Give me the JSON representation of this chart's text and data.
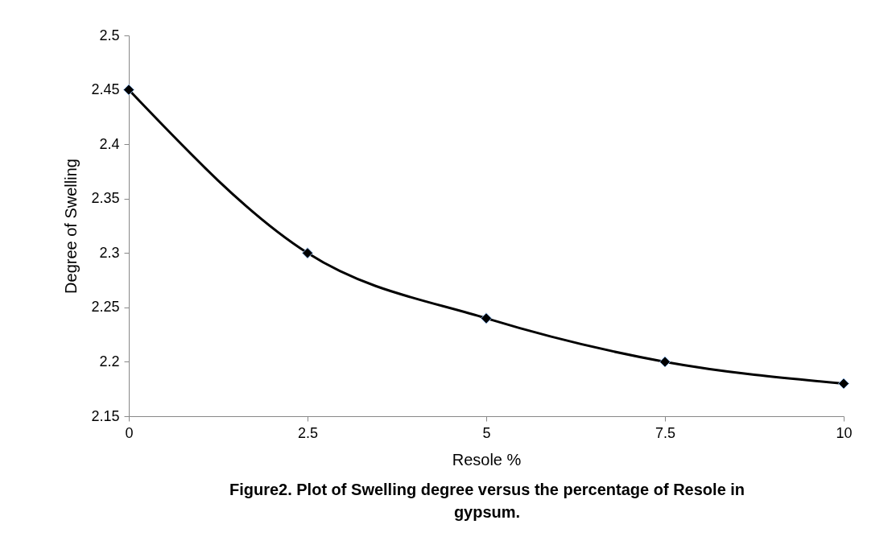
{
  "chart_data": {
    "type": "line",
    "xlabel": "Resole %",
    "ylabel": "Degree of Swelling",
    "x": [
      0,
      2.5,
      5,
      7.5,
      10
    ],
    "series": [
      {
        "color": "#000000",
        "values": [
          2.45,
          2.3,
          2.24,
          2.2,
          2.18
        ]
      }
    ],
    "xlim": [
      0,
      10
    ],
    "xticks": [
      0,
      2.5,
      5,
      7.5,
      10
    ],
    "ylim": [
      2.15,
      2.5
    ],
    "yticks": [
      2.15,
      2.2,
      2.25,
      2.3,
      2.35,
      2.4,
      2.45,
      2.5
    ],
    "marker": "diamond",
    "grid": false,
    "legend": false,
    "annotations": [
      "Figure2. Plot of Swelling degree versus the percentage of Resole in gypsum."
    ]
  }
}
